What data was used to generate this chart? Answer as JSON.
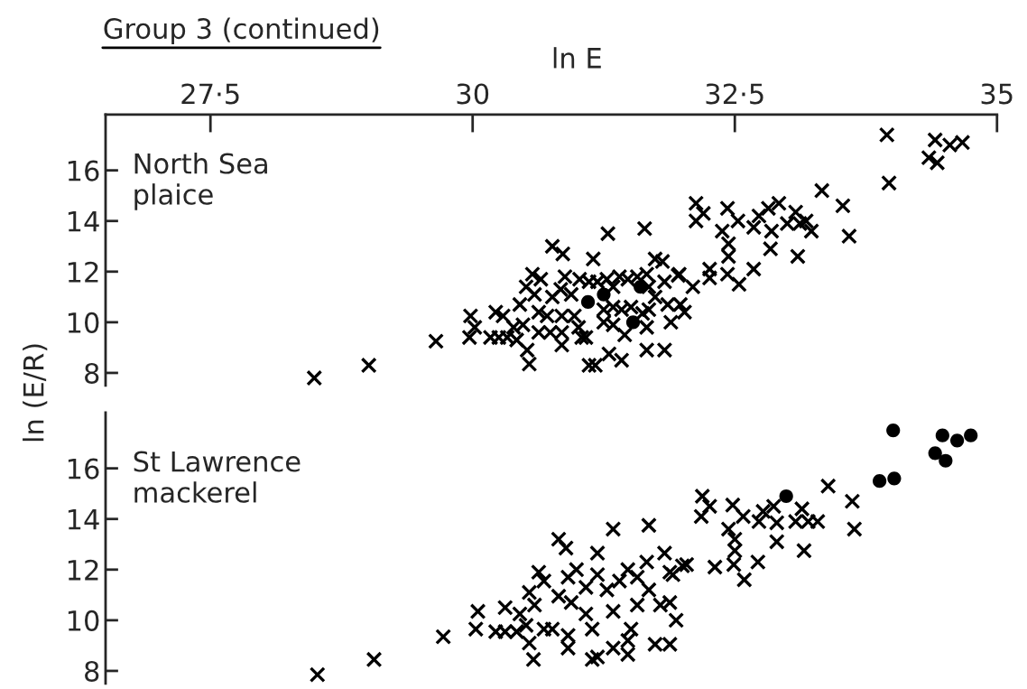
{
  "chart_data": [
    {
      "type": "scatter",
      "title": "North Sea\nplaice",
      "xlabel": "ln E",
      "ylabel": "ln (E/R)",
      "annotations": [
        "Group 3 (continued)"
      ],
      "xlim": [
        26.5,
        35
      ],
      "xticks": [
        {
          "value": 27.5,
          "label": "27·5"
        },
        30,
        {
          "value": 32.5,
          "label": "32·5"
        },
        35
      ],
      "ylim": [
        7.5,
        18.2
      ],
      "yticks": [
        8,
        10,
        12,
        14,
        16
      ],
      "tick_labels": "xy",
      "series": [
        {
          "marker": "cross",
          "color": "#000000",
          "x": [
            28.49,
            29.01,
            29.65,
            29.98,
            30.02,
            29.97,
            30.22,
            30.29,
            30.17,
            30.25,
            30.33,
            30.42,
            30.39,
            30.48,
            30.52,
            30.54,
            30.45,
            30.51,
            30.57,
            30.65,
            30.59,
            30.63,
            30.63,
            30.71,
            30.74,
            30.76,
            30.84,
            30.88,
            30.85,
            30.85,
            30.85,
            30.94,
            30.97,
            31.01,
            31.04,
            31.08,
            31.02,
            31.11,
            31.19,
            31.28,
            31.34,
            31.4,
            31.48,
            31.57,
            31.66,
            31.68,
            31.25,
            31.34,
            31.25,
            31.34,
            31.42,
            31.51,
            31.62,
            31.74,
            30.76,
            30.86,
            31.29,
            31.64,
            31.15,
            31.74,
            31.96,
            31.83,
            31.86,
            31.98,
            31.89,
            31.66,
            31.83,
            31.66,
            31.42,
            31.3,
            31.11,
            31.17,
            31.45,
            31.81,
            32.1,
            31.68,
            32.02,
            31.97,
            32.26,
            32.26,
            32.43,
            32.54,
            32.68,
            32.13,
            32.2,
            32.13,
            32.43,
            32.53,
            32.38,
            32.44,
            32.44,
            32.68,
            32.73,
            32.82,
            32.92,
            32.85,
            32.84,
            33.0,
            33.08,
            33.12,
            33.18,
            33.23,
            33.1,
            33.33,
            33.53,
            33.59,
            33.95,
            33.97,
            34.41,
            34.55,
            34.67,
            34.35,
            34.43
          ],
          "values": [
            7.8,
            8.3,
            9.25,
            10.25,
            9.8,
            9.4,
            10.4,
            10.25,
            9.4,
            9.4,
            9.4,
            9.3,
            9.8,
            9.9,
            8.9,
            8.35,
            10.7,
            11.4,
            11.9,
            11.7,
            11.1,
            10.4,
            9.6,
            10.25,
            9.6,
            11.0,
            11.3,
            11.8,
            10.25,
            9.6,
            9.1,
            11.1,
            10.25,
            9.8,
            9.4,
            9.4,
            11.7,
            11.6,
            11.6,
            11.7,
            11.4,
            11.8,
            11.7,
            11.8,
            11.9,
            11.4,
            10.5,
            10.6,
            10.0,
            9.9,
            10.5,
            10.6,
            10.35,
            11.0,
            13.0,
            12.7,
            13.5,
            13.7,
            12.5,
            12.5,
            11.85,
            11.6,
            10.7,
            10.7,
            10.0,
            8.9,
            8.9,
            9.8,
            8.5,
            8.75,
            8.3,
            8.3,
            9.5,
            12.4,
            11.4,
            10.5,
            10.4,
            11.9,
            12.1,
            11.75,
            11.9,
            11.5,
            12.1,
            14.7,
            14.3,
            14.0,
            14.5,
            14.0,
            13.6,
            13.1,
            12.6,
            13.75,
            14.2,
            14.5,
            14.7,
            13.6,
            12.9,
            13.9,
            14.35,
            13.9,
            14.0,
            13.6,
            12.6,
            15.2,
            14.6,
            13.4,
            17.4,
            15.5,
            17.2,
            17.0,
            17.1,
            16.5,
            16.3
          ]
        },
        {
          "marker": "circle",
          "color": "#000000",
          "x": [
            31.1,
            31.25,
            31.53,
            31.6
          ],
          "values": [
            10.8,
            11.1,
            10.0,
            11.4
          ]
        }
      ]
    },
    {
      "type": "scatter",
      "title": "St Lawrence\nmackerel",
      "xlim": [
        26.5,
        35
      ],
      "ylim": [
        7.5,
        18.2
      ],
      "yticks": [
        8,
        10,
        12,
        14,
        16
      ],
      "tick_labels": "y",
      "series": [
        {
          "marker": "cross",
          "color": "#000000",
          "x": [
            28.52,
            29.06,
            29.72,
            30.05,
            30.03,
            30.31,
            30.22,
            30.31,
            30.42,
            30.51,
            30.54,
            30.58,
            30.45,
            30.54,
            30.63,
            30.68,
            30.59,
            30.68,
            30.76,
            30.82,
            30.91,
            30.94,
            30.91,
            30.91,
            30.99,
            31.08,
            31.08,
            31.14,
            31.19,
            31.28,
            31.34,
            31.4,
            31.48,
            31.57,
            31.66,
            31.68,
            31.57,
            31.51,
            31.48,
            31.19,
            31.14,
            31.34,
            31.48,
            31.74,
            31.88,
            31.79,
            31.88,
            31.94,
            31.83,
            30.82,
            30.89,
            31.34,
            31.68,
            31.19,
            32.0,
            31.91,
            31.88,
            32.04,
            32.31,
            32.49,
            32.59,
            32.72,
            32.19,
            32.26,
            32.18,
            32.48,
            32.58,
            32.44,
            32.5,
            32.5,
            32.77,
            32.73,
            32.87,
            32.9,
            32.9,
            33.08,
            33.14,
            33.2,
            33.29,
            33.16,
            33.39,
            33.62,
            33.64
          ],
          "values": [
            7.85,
            8.45,
            9.35,
            10.35,
            9.65,
            10.5,
            9.55,
            9.55,
            9.55,
            9.8,
            9.1,
            8.45,
            10.25,
            11.1,
            11.9,
            11.55,
            10.6,
            9.65,
            9.65,
            10.95,
            11.7,
            10.7,
            9.4,
            8.9,
            12.0,
            11.3,
            10.25,
            9.65,
            11.8,
            11.2,
            10.35,
            11.55,
            12.0,
            11.7,
            12.3,
            11.2,
            10.6,
            9.65,
            9.2,
            8.55,
            8.45,
            8.9,
            8.65,
            9.05,
            9.05,
            10.6,
            10.7,
            10.0,
            12.65,
            13.2,
            12.85,
            13.6,
            13.75,
            12.65,
            12.15,
            11.8,
            11.9,
            12.2,
            12.1,
            12.2,
            11.6,
            12.3,
            14.9,
            14.5,
            14.1,
            14.55,
            14.1,
            13.6,
            13.2,
            12.75,
            14.3,
            13.9,
            14.5,
            13.85,
            13.1,
            13.9,
            14.4,
            13.9,
            13.9,
            12.75,
            15.3,
            14.7,
            13.6
          ]
        },
        {
          "marker": "circle",
          "color": "#000000",
          "x": [
            32.99,
            33.88,
            34.02,
            34.01,
            34.48,
            34.62,
            34.75,
            34.41,
            34.51
          ],
          "values": [
            14.9,
            15.5,
            15.6,
            17.5,
            17.3,
            17.1,
            17.3,
            16.6,
            16.3
          ]
        }
      ]
    }
  ]
}
